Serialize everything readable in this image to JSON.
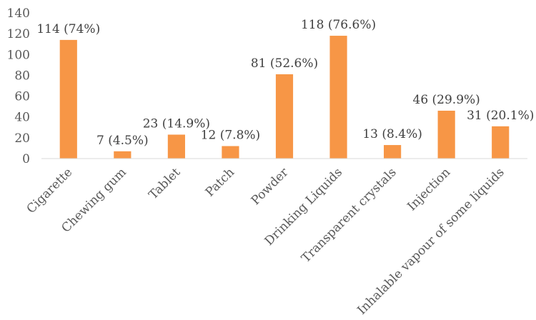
{
  "chart_data": {
    "type": "bar",
    "title": "",
    "xlabel": "",
    "ylabel": "",
    "ylim": [
      0,
      140
    ],
    "yticks": [
      0,
      20,
      40,
      60,
      80,
      100,
      120,
      140
    ],
    "grid": false,
    "legend": "none",
    "bar_color": "#F79646",
    "axis_color": "#D9D9D9",
    "categories": [
      "Cigarette",
      "Chewing gum",
      "Tablet",
      "Patch",
      "Powder",
      "Drinking Liquids",
      "Transparent crystals",
      "Injection",
      "Inhalable vapour of some liquids"
    ],
    "values": [
      114,
      7,
      23,
      12,
      81,
      118,
      13,
      46,
      31
    ],
    "data_labels": [
      "114 (74%)",
      "7 (4.5%)",
      "23 (14.9%)",
      "12 (7.8%)",
      "81 (52.6%)",
      "118 (76.6%)",
      "13 (8.4%)",
      "46 (29.9%)",
      "31 (20.1%)"
    ]
  }
}
